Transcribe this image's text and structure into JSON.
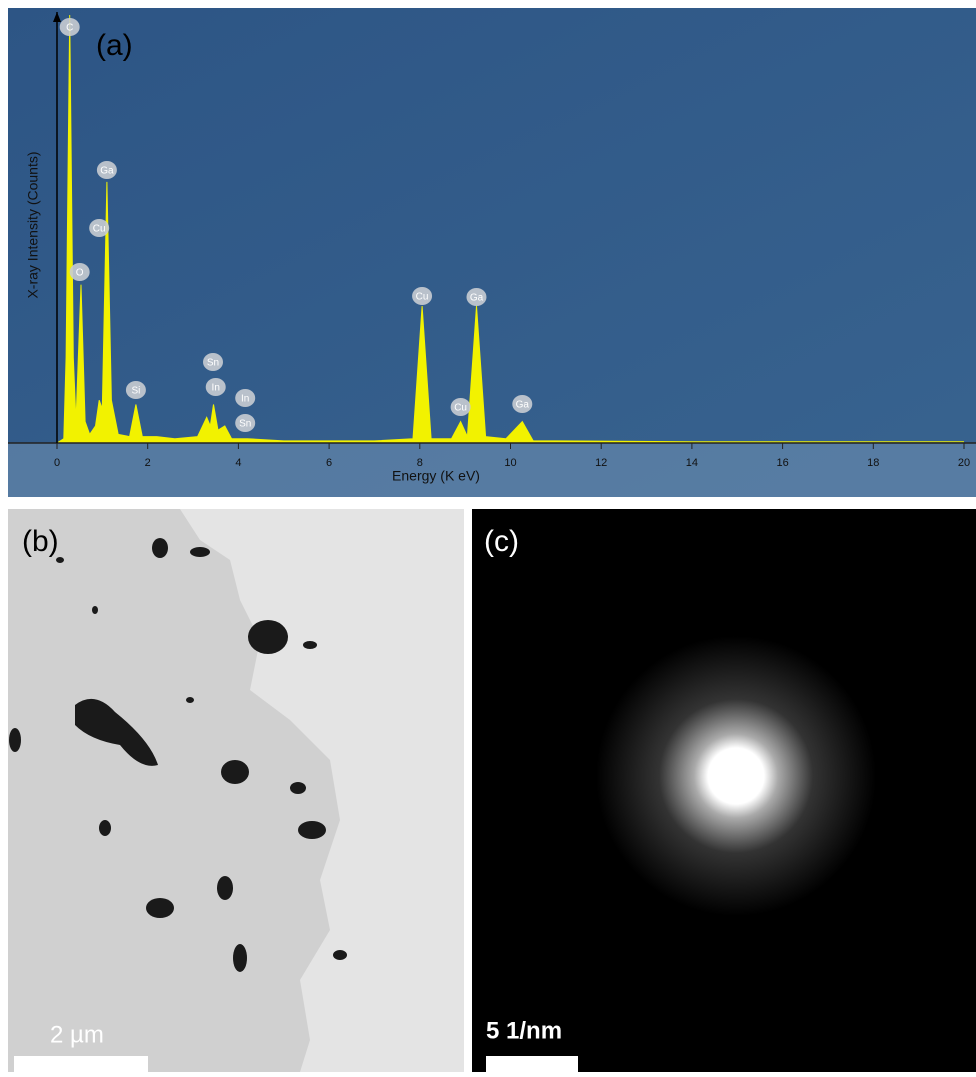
{
  "chart_data": {
    "type": "area",
    "panel_label": "(a)",
    "xlabel": "Energy (K eV)",
    "ylabel": "X-ray Intensity (Counts)",
    "x": [
      0,
      0.15,
      0.2,
      0.28,
      0.36,
      0.42,
      0.53,
      0.62,
      0.72,
      0.85,
      0.93,
      1.0,
      1.1,
      1.2,
      1.35,
      1.6,
      1.74,
      1.88,
      2.2,
      2.6,
      3.1,
      3.3,
      3.38,
      3.45,
      3.55,
      3.7,
      3.85,
      4.2,
      5,
      6,
      7,
      7.85,
      8.05,
      8.25,
      8.7,
      8.9,
      9.05,
      9.25,
      9.45,
      9.9,
      10.26,
      10.5,
      11,
      14,
      20
    ],
    "values": [
      0,
      1,
      20,
      100,
      20,
      5,
      37,
      5,
      2,
      4,
      10,
      8,
      61,
      10,
      2,
      1.5,
      9,
      1.5,
      1.5,
      1,
      1.5,
      6,
      4,
      9,
      3,
      4,
      1,
      1,
      0.5,
      0.5,
      0.5,
      1,
      32,
      1,
      1,
      5,
      1.5,
      32,
      1.5,
      1,
      5,
      0.5,
      0.5,
      0.3,
      0.3
    ],
    "color": "#f2f200",
    "xlim": [
      0,
      20
    ],
    "xticks": [
      0,
      2,
      4,
      6,
      8,
      10,
      12,
      14,
      16,
      18,
      20
    ],
    "ylim": [
      0,
      100
    ],
    "peak_labels": [
      {
        "label": "C",
        "x": 0.28
      },
      {
        "label": "O",
        "x": 0.5
      },
      {
        "label": "Cu",
        "x": 0.93
      },
      {
        "label": "Ga",
        "x": 1.1
      },
      {
        "label": "Si",
        "x": 1.74
      },
      {
        "label": "Sn",
        "x": 3.44
      },
      {
        "label": "In",
        "x": 3.5
      },
      {
        "label": "In",
        "x": 4.15
      },
      {
        "label": "Sn",
        "x": 4.15
      },
      {
        "label": "Cu",
        "x": 8.05
      },
      {
        "label": "Ga",
        "x": 9.25
      },
      {
        "label": "Cu",
        "x": 8.9
      },
      {
        "label": "Ga",
        "x": 10.26
      }
    ]
  },
  "panels": {
    "b": {
      "label": "(b)",
      "scale_bar": "2 µm"
    },
    "c": {
      "label": "(c)",
      "scale_bar": "5 1/nm"
    }
  }
}
